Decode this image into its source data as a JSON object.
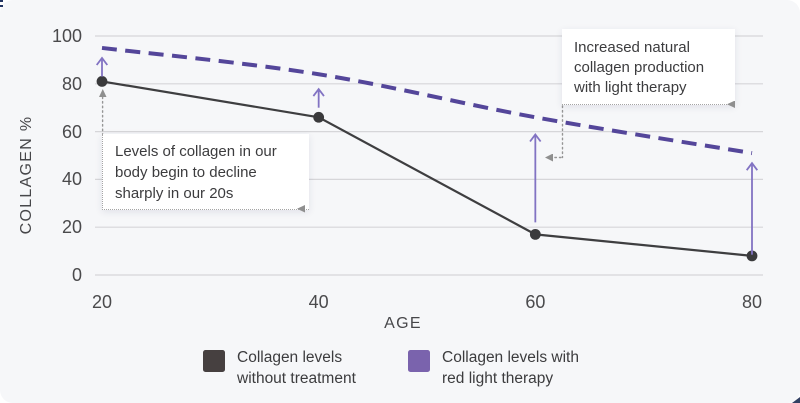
{
  "chart_data": {
    "type": "line",
    "title": "",
    "xlabel": "AGE",
    "ylabel": "COLLAGEN %",
    "x": [
      20,
      40,
      60,
      80
    ],
    "xtick_labels": [
      "20",
      "40",
      "60",
      "80"
    ],
    "ytick_values": [
      0,
      20,
      40,
      60,
      80,
      100
    ],
    "ytick_labels": [
      "0",
      "20",
      "40",
      "60",
      "80",
      "100"
    ],
    "ylim": [
      0,
      100
    ],
    "grid": "horizontal",
    "legend_position": "bottom",
    "series": [
      {
        "name": "Collagen levels without treatment",
        "color": "#3e3e40",
        "line_style": "solid",
        "markers": true,
        "values": [
          81,
          66,
          17,
          8
        ]
      },
      {
        "name": "Collagen levels with red light therapy",
        "color": "#54469a",
        "line_style": "dashed",
        "markers": false,
        "values": [
          95,
          84,
          66,
          51
        ]
      }
    ],
    "improvement_arrows": {
      "color": "#8273c3",
      "items": [
        {
          "age": 20,
          "from": 83,
          "to": 91
        },
        {
          "age": 40,
          "from": 70,
          "to": 78
        },
        {
          "age": 60,
          "from": 22,
          "to": 59
        },
        {
          "age": 80,
          "from": 8.5,
          "to": 47
        }
      ]
    }
  },
  "annotations": {
    "decline": {
      "lines": [
        "Levels of collagen in our",
        "body begin to decline",
        "sharply in our 20s"
      ]
    },
    "increase": {
      "lines": [
        "Increased natural",
        "collagen production",
        "with light therapy"
      ]
    }
  },
  "legend": {
    "items": [
      {
        "color": "#464040",
        "lines": [
          "Collagen levels",
          "without treatment"
        ]
      },
      {
        "color": "#7a63ad",
        "lines": [
          "Collagen levels with",
          "red light therapy"
        ]
      }
    ]
  },
  "colors": {
    "background": "#f6f7f9",
    "gridline": "#d6d6d9",
    "tick_text": "#4a4a4c",
    "annotation_text": "#3c3c3e",
    "leader": "#969696"
  }
}
